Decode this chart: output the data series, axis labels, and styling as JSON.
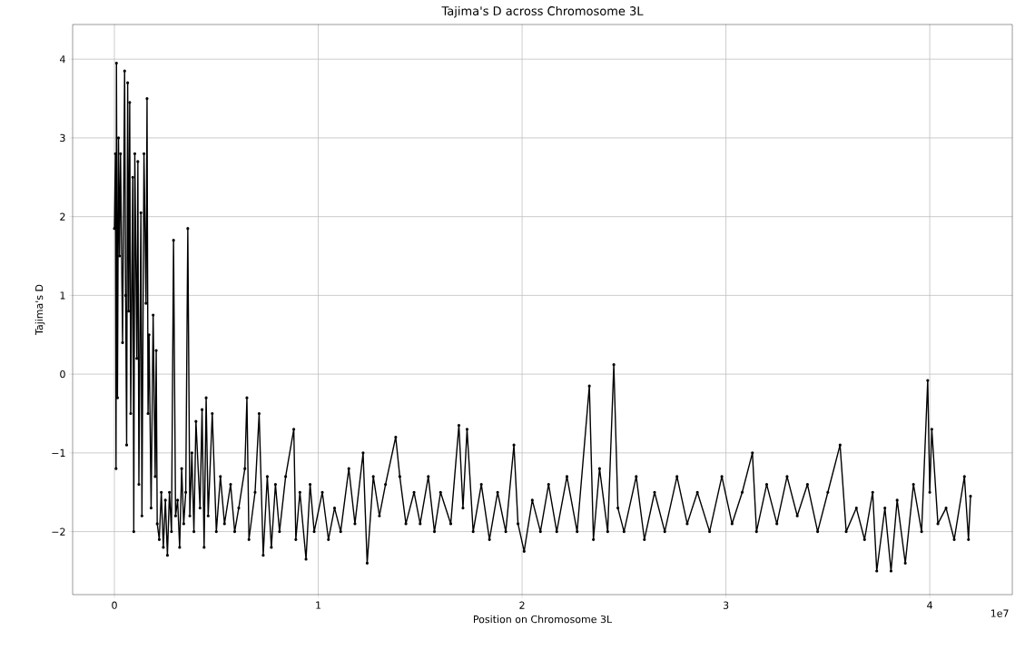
{
  "chart_data": {
    "type": "line",
    "title": "Tajima's D across Chromosome 3L",
    "xlabel": "Position on Chromosome 3L",
    "ylabel": "Tajima's D",
    "annotations": [
      "1e7"
    ],
    "series": [
      {
        "color": "#000000",
        "x": [
          0,
          0.005,
          0.008,
          0.01,
          0.015,
          0.02,
          0.025,
          0.03,
          0.04,
          0.05,
          0.055,
          0.06,
          0.065,
          0.07,
          0.075,
          0.08,
          0.09,
          0.095,
          0.1,
          0.11,
          0.115,
          0.12,
          0.13,
          0.135,
          0.145,
          0.155,
          0.16,
          0.165,
          0.17,
          0.18,
          0.19,
          0.2,
          0.205,
          0.21,
          0.22,
          0.23,
          0.24,
          0.25,
          0.26,
          0.27,
          0.28,
          0.29,
          0.3,
          0.31,
          0.32,
          0.33,
          0.34,
          0.35,
          0.36,
          0.37,
          0.38,
          0.39,
          0.4,
          0.42,
          0.43,
          0.44,
          0.45,
          0.46,
          0.48,
          0.5,
          0.52,
          0.54,
          0.57,
          0.59,
          0.61,
          0.64,
          0.65,
          0.66,
          0.69,
          0.71,
          0.73,
          0.75,
          0.77,
          0.79,
          0.81,
          0.84,
          0.88,
          0.89,
          0.91,
          0.94,
          0.96,
          0.98,
          1.02,
          1.05,
          1.08,
          1.11,
          1.15,
          1.18,
          1.22,
          1.24,
          1.27,
          1.3,
          1.33,
          1.38,
          1.4,
          1.43,
          1.47,
          1.5,
          1.54,
          1.57,
          1.6,
          1.65,
          1.69,
          1.71,
          1.73,
          1.76,
          1.8,
          1.84,
          1.88,
          1.92,
          1.96,
          1.98,
          2.01,
          2.05,
          2.09,
          2.13,
          2.17,
          2.22,
          2.27,
          2.33,
          2.35,
          2.38,
          2.42,
          2.45,
          2.47,
          2.5,
          2.56,
          2.6,
          2.65,
          2.7,
          2.76,
          2.81,
          2.86,
          2.92,
          2.98,
          3.03,
          3.08,
          3.13,
          3.15,
          3.2,
          3.25,
          3.3,
          3.35,
          3.4,
          3.45,
          3.5,
          3.56,
          3.59,
          3.64,
          3.68,
          3.72,
          3.74,
          3.78,
          3.81,
          3.84,
          3.88,
          3.92,
          3.96,
          3.99,
          4.0,
          4.01,
          4.04,
          4.08,
          4.12,
          4.17,
          4.19,
          4.2
        ],
        "values": [
          1.85,
          2.8,
          -1.2,
          3.95,
          -0.3,
          3.0,
          1.5,
          2.8,
          0.4,
          3.85,
          1.0,
          -0.9,
          3.7,
          0.8,
          3.45,
          -0.5,
          2.5,
          -2.0,
          2.8,
          0.2,
          2.7,
          -1.4,
          2.05,
          -1.8,
          2.8,
          0.9,
          3.5,
          -0.5,
          0.5,
          -1.7,
          0.75,
          -1.3,
          0.3,
          -1.9,
          -2.1,
          -1.5,
          -2.2,
          -1.6,
          -2.3,
          -1.5,
          -2.0,
          1.7,
          -1.8,
          -1.6,
          -2.2,
          -1.2,
          -1.9,
          -1.5,
          1.85,
          -1.8,
          -1.0,
          -2.0,
          -0.6,
          -1.7,
          -0.45,
          -2.2,
          -0.3,
          -1.8,
          -0.5,
          -2.0,
          -1.3,
          -1.9,
          -1.4,
          -2.0,
          -1.7,
          -1.2,
          -0.3,
          -2.1,
          -1.5,
          -0.5,
          -2.3,
          -1.3,
          -2.2,
          -1.4,
          -2.0,
          -1.3,
          -0.7,
          -2.1,
          -1.5,
          -2.35,
          -1.4,
          -2.0,
          -1.5,
          -2.1,
          -1.7,
          -2.0,
          -1.2,
          -1.9,
          -1.0,
          -2.4,
          -1.3,
          -1.8,
          -1.4,
          -0.8,
          -1.3,
          -1.9,
          -1.5,
          -1.9,
          -1.3,
          -2.0,
          -1.5,
          -1.9,
          -0.65,
          -1.7,
          -0.7,
          -2.0,
          -1.4,
          -2.1,
          -1.5,
          -2.0,
          -0.9,
          -1.9,
          -2.25,
          -1.6,
          -2.0,
          -1.4,
          -2.0,
          -1.3,
          -2.0,
          -0.15,
          -2.1,
          -1.2,
          -2.0,
          0.12,
          -1.7,
          -2.0,
          -1.3,
          -2.1,
          -1.5,
          -2.0,
          -1.3,
          -1.9,
          -1.5,
          -2.0,
          -1.3,
          -1.9,
          -1.5,
          -1.0,
          -2.0,
          -1.4,
          -1.9,
          -1.3,
          -1.8,
          -1.4,
          -2.0,
          -1.5,
          -0.9,
          -2.0,
          -1.7,
          -2.1,
          -1.5,
          -2.5,
          -1.7,
          -2.5,
          -1.6,
          -2.4,
          -1.4,
          -2.0,
          -0.08,
          -1.5,
          -0.7,
          -1.9,
          -1.7,
          -2.1,
          -1.3,
          -2.1,
          -1.55
        ]
      }
    ],
    "xlim": [
      -0.205,
      4.405
    ],
    "xticks": [
      0,
      1,
      2,
      3,
      4
    ],
    "ylim": [
      -2.8,
      4.44
    ],
    "yticks": [
      {
        "value": -2,
        "label": "−2"
      },
      {
        "value": -1,
        "label": "−1"
      },
      0,
      1,
      2,
      3,
      4
    ],
    "grid": true,
    "marker": "circle",
    "line_style": "solid"
  }
}
